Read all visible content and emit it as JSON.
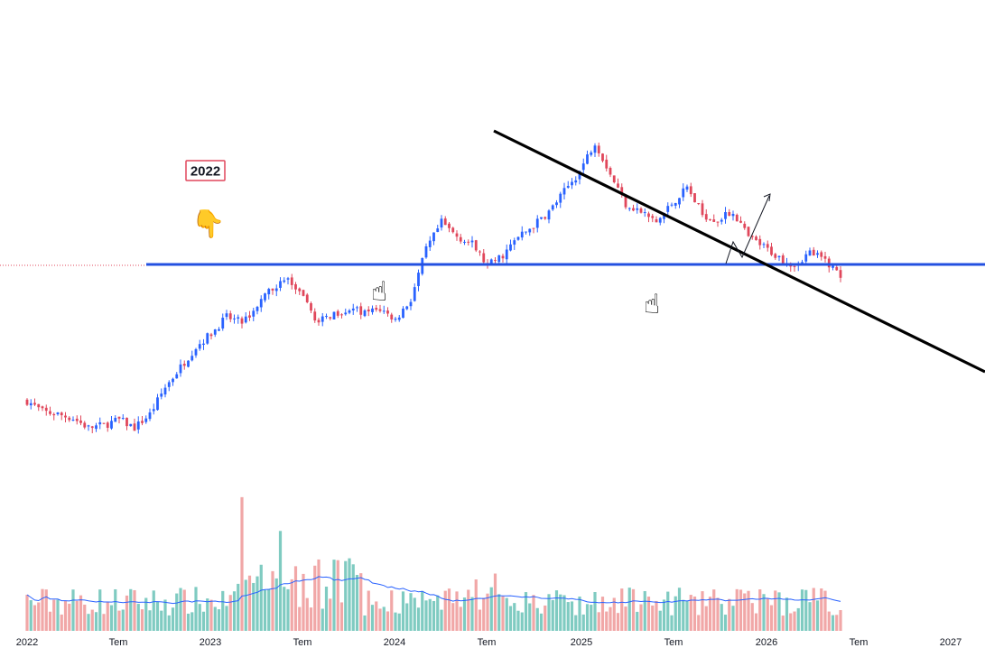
{
  "chart_data": {
    "type": "candlestick",
    "title": "",
    "xlabel": "",
    "ylabel": "",
    "grid": false,
    "legend": "none",
    "x_tick_labels": [
      "2022",
      "Tem",
      "2023",
      "Tem",
      "2024",
      "Tem",
      "2025",
      "Tem",
      "2026",
      "Tem",
      "2027"
    ],
    "annotations": {
      "year_box": "2022",
      "pointer_down_icon": "backhand-index-pointing-down",
      "pointer_up_icons": [
        "backhand-index-pointing-up",
        "backhand-index-pointing-up"
      ],
      "breakout_arrow": "arrow-up-right"
    },
    "price_index": [
      {
        "x": "2022-01",
        "y": 100
      },
      {
        "x": "2022-02",
        "y": 92
      },
      {
        "x": "2022-03",
        "y": 90
      },
      {
        "x": "2022-04",
        "y": 87
      },
      {
        "x": "2022-05",
        "y": 80
      },
      {
        "x": "2022-06",
        "y": 82
      },
      {
        "x": "2022-07",
        "y": 86
      },
      {
        "x": "2022-08",
        "y": 80
      },
      {
        "x": "2022-09",
        "y": 90
      },
      {
        "x": "2022-10",
        "y": 110
      },
      {
        "x": "2022-11",
        "y": 125
      },
      {
        "x": "2022-12",
        "y": 140
      },
      {
        "x": "2023-01",
        "y": 150
      },
      {
        "x": "2023-02",
        "y": 162
      },
      {
        "x": "2023-03",
        "y": 158
      },
      {
        "x": "2023-04",
        "y": 170
      },
      {
        "x": "2023-05",
        "y": 184
      },
      {
        "x": "2023-06",
        "y": 190
      },
      {
        "x": "2023-07",
        "y": 175
      },
      {
        "x": "2023-08",
        "y": 158
      },
      {
        "x": "2023-09",
        "y": 165
      },
      {
        "x": "2023-10",
        "y": 168
      },
      {
        "x": "2023-11",
        "y": 165
      },
      {
        "x": "2023-12",
        "y": 168
      },
      {
        "x": "2024-01",
        "y": 160
      },
      {
        "x": "2024-02",
        "y": 175
      },
      {
        "x": "2024-03",
        "y": 212
      },
      {
        "x": "2024-04",
        "y": 232
      },
      {
        "x": "2024-05",
        "y": 222
      },
      {
        "x": "2024-06",
        "y": 216
      },
      {
        "x": "2024-07",
        "y": 200
      },
      {
        "x": "2024-08",
        "y": 208
      },
      {
        "x": "2024-09",
        "y": 221
      },
      {
        "x": "2024-10",
        "y": 230
      },
      {
        "x": "2024-11",
        "y": 240
      },
      {
        "x": "2024-12",
        "y": 255
      },
      {
        "x": "2025-01",
        "y": 270
      },
      {
        "x": "2025-02",
        "y": 292
      },
      {
        "x": "2025-03",
        "y": 268
      },
      {
        "x": "2025-04",
        "y": 246
      },
      {
        "x": "2025-05",
        "y": 240
      },
      {
        "x": "2025-06",
        "y": 232
      },
      {
        "x": "2025-07",
        "y": 246
      },
      {
        "x": "2025-08",
        "y": 258
      },
      {
        "x": "2025-09",
        "y": 238
      },
      {
        "x": "2025-10",
        "y": 234
      },
      {
        "x": "2025-11",
        "y": 240
      },
      {
        "x": "2025-12",
        "y": 221
      },
      {
        "x": "2026-01",
        "y": 214
      },
      {
        "x": "2026-02",
        "y": 206
      },
      {
        "x": "2026-03",
        "y": 201
      },
      {
        "x": "2026-04",
        "y": 210
      },
      {
        "x": "2026-05",
        "y": 204
      },
      {
        "x": "2026-06",
        "y": 193
      }
    ],
    "support_level": 192,
    "downtrend_line": {
      "start": {
        "x": "2025-02",
        "y": 296
      },
      "end": {
        "x": "2027-05",
        "y": 122
      }
    },
    "volume_series_ref": "volume",
    "volume_ma_length_months": 6,
    "colors": {
      "up": "#2962ff",
      "down": "#e0475b",
      "volume_up": "#7fcbc1",
      "volume_down": "#f1a7a7",
      "volume_ma": "#2962ff",
      "support_line": "#2350e0",
      "trend_line": "#000000"
    }
  }
}
